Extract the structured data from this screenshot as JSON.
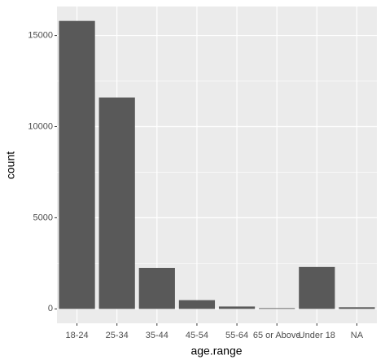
{
  "chart_data": {
    "type": "bar",
    "categories": [
      "18-24",
      "25-34",
      "35-44",
      "45-54",
      "55-64",
      "65 or Above",
      "Under 18",
      "NA"
    ],
    "values": [
      15800,
      11600,
      2250,
      480,
      130,
      40,
      2300,
      90
    ],
    "color": "#595959",
    "x_label": "age.range",
    "y_label": "count",
    "ylim": [
      -790,
      16590
    ],
    "yticks": [
      0,
      5000,
      10000,
      15000
    ],
    "grid": true
  }
}
